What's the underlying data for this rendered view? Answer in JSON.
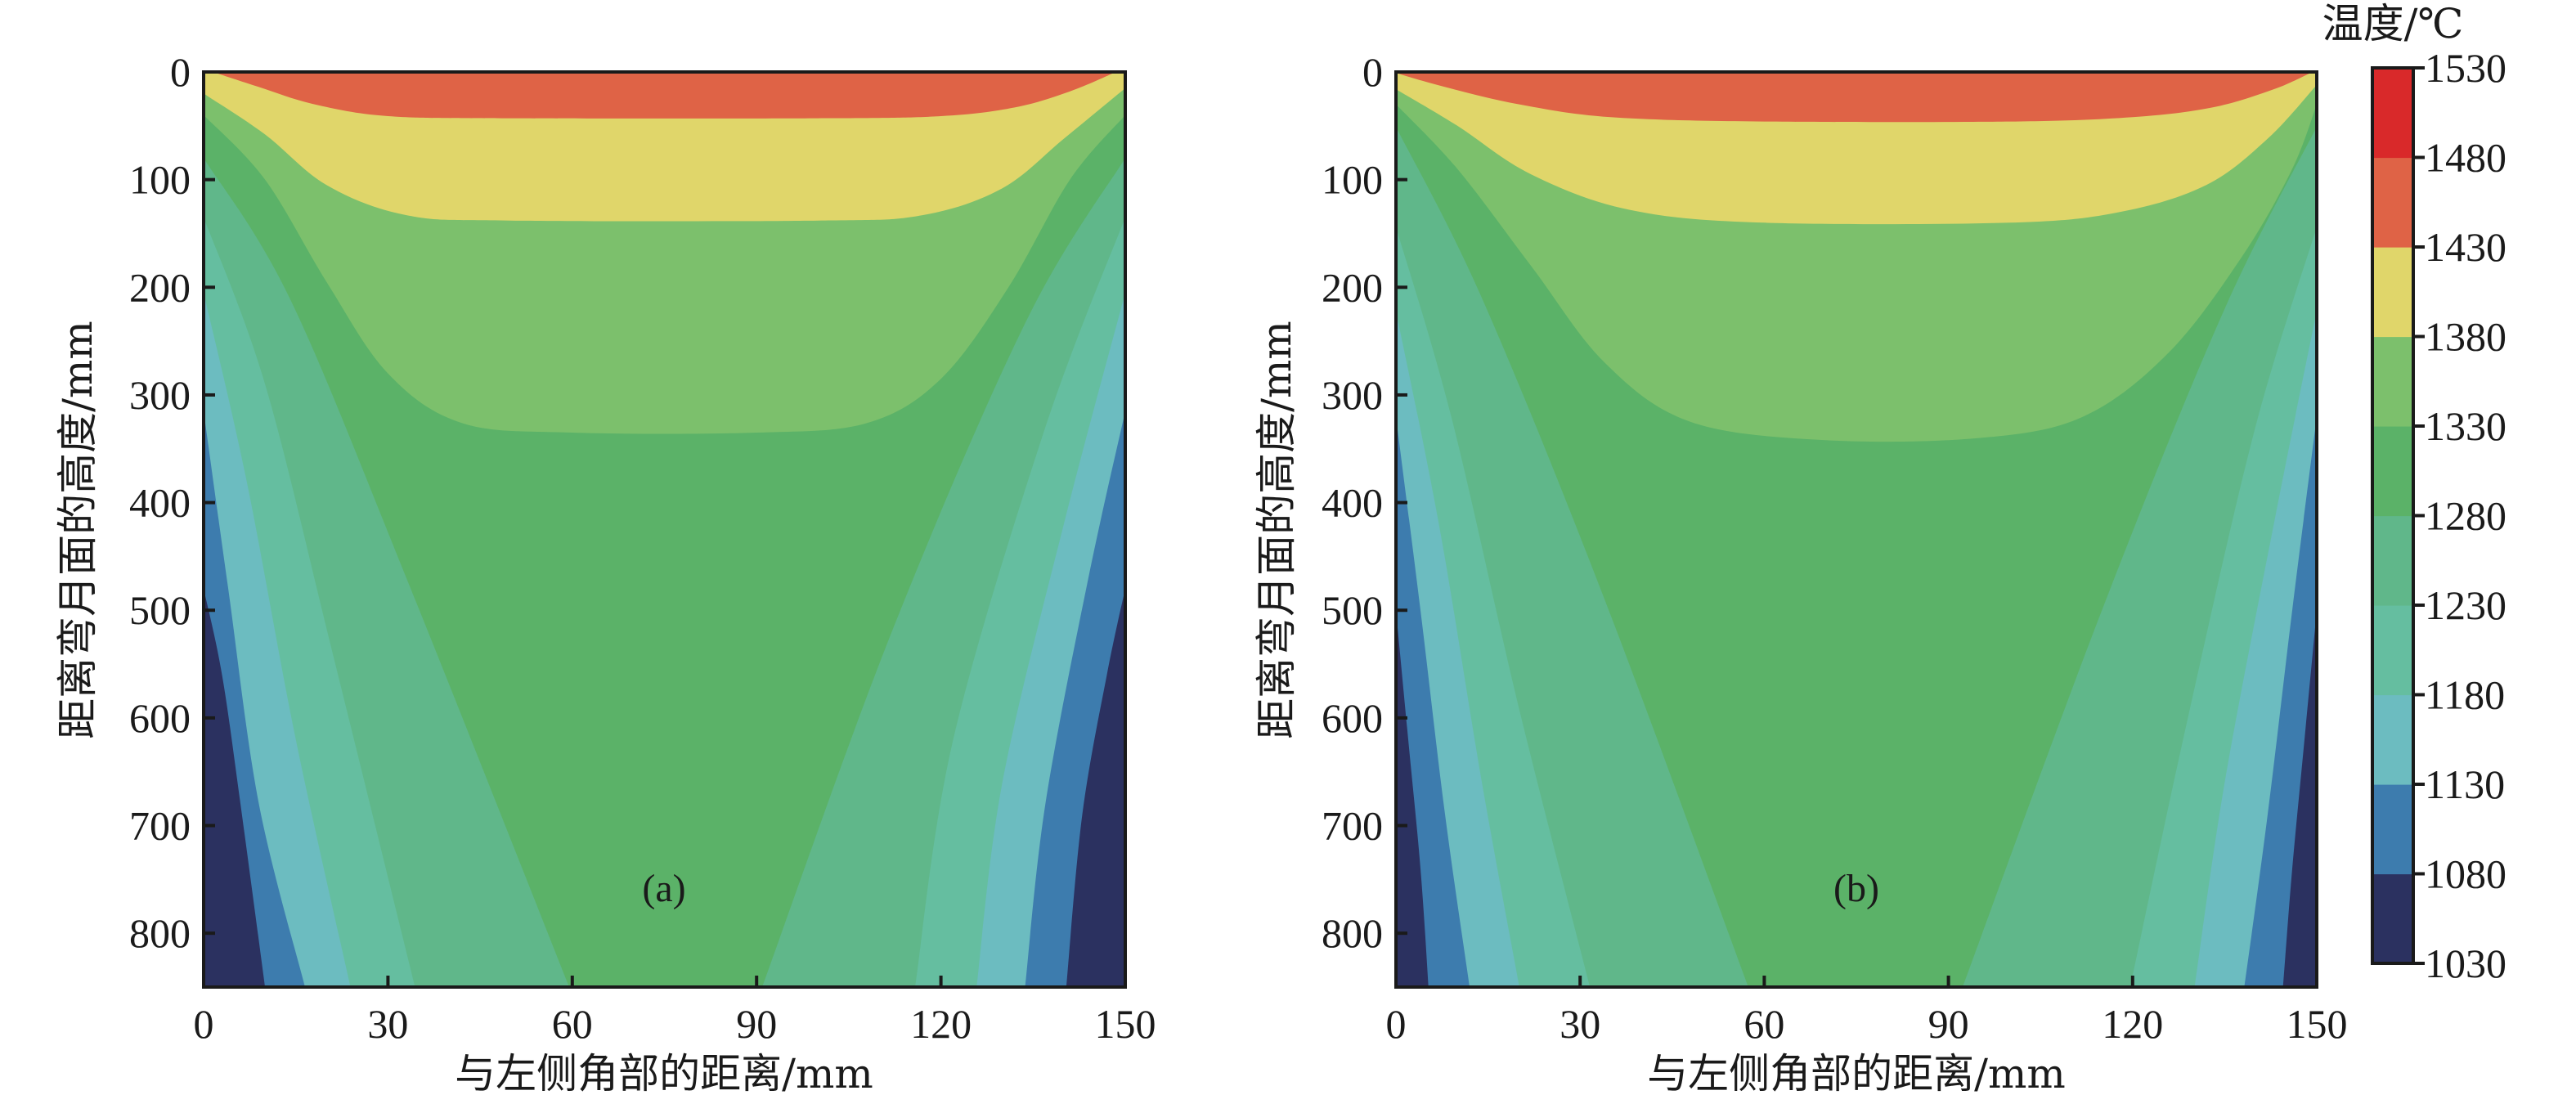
{
  "chart_data": {
    "type": "contour",
    "colorbar": {
      "title": "温度/℃",
      "levels": [
        1030,
        1080,
        1130,
        1180,
        1230,
        1280,
        1330,
        1380,
        1430,
        1480,
        1530
      ],
      "tick_labels": [
        "1530",
        "1480",
        "1430",
        "1380",
        "1330",
        "1280",
        "1230",
        "1180",
        "1130",
        "1080",
        "1030"
      ],
      "colors": [
        "#2b3160",
        "#3d7cae",
        "#6cbcc0",
        "#65bea0",
        "#60b78a",
        "#5bb268",
        "#7cc06c",
        "#e0d66a",
        "#df6346",
        "#d9292a"
      ]
    },
    "panels": [
      {
        "label": "(a)",
        "xlabel": "与左侧角部的距离/mm",
        "ylabel": "距离弯月面的高度/mm",
        "xlim": [
          0,
          150
        ],
        "ylim": [
          0,
          850
        ],
        "y_inverted": true,
        "xticks": [
          "0",
          "30",
          "60",
          "90",
          "120",
          "150"
        ],
        "yticks": [
          "0",
          "100",
          "200",
          "300",
          "400",
          "500",
          "600",
          "700",
          "800"
        ],
        "isotherms": [
          {
            "level": 1080,
            "left": [
              [
                0,
                480
              ],
              [
                3,
                560
              ],
              [
                6,
                680
              ],
              [
                10,
                850
              ]
            ],
            "right": [
              [
                150,
                480
              ],
              [
                147,
                560
              ],
              [
                143,
                690
              ],
              [
                140.4,
                850
              ]
            ]
          },
          {
            "level": 1130,
            "left": [
              [
                0,
                315
              ],
              [
                4,
                480
              ],
              [
                9,
                680
              ],
              [
                16.5,
                850
              ]
            ],
            "right": [
              [
                150,
                315
              ],
              [
                144,
                470
              ],
              [
                137,
                680
              ],
              [
                133.7,
                850
              ]
            ]
          },
          {
            "level": 1180,
            "left": [
              [
                0,
                205
              ],
              [
                7,
                380
              ],
              [
                15,
                620
              ],
              [
                23.9,
                850
              ]
            ],
            "right": [
              [
                150,
                205
              ],
              [
                140,
                420
              ],
              [
                130,
                660
              ],
              [
                125.8,
                850
              ]
            ]
          },
          {
            "level": 1230,
            "left": [
              [
                0,
                135
              ],
              [
                10,
                290
              ],
              [
                21,
                540
              ],
              [
                34.4,
                850
              ]
            ],
            "right": [
              [
                150,
                135
              ],
              [
                137,
                330
              ],
              [
                122,
                620
              ],
              [
                115.8,
                850
              ]
            ]
          },
          {
            "level": 1280,
            "left": [
              [
                0,
                80
              ],
              [
                14,
                210
              ],
              [
                33,
                470
              ],
              [
                59.5,
                850
              ]
            ],
            "right": [
              [
                150,
                80
              ],
              [
                134,
                230
              ],
              [
                112,
                520
              ],
              [
                90.9,
                850
              ]
            ]
          },
          {
            "level": 1330,
            "bowl": [
              [
                0,
                40
              ],
              [
                10,
                100
              ],
              [
                20,
                195
              ],
              [
                30,
                280
              ],
              [
                42,
                326
              ],
              [
                60,
                335
              ],
              [
                90,
                335
              ],
              [
                108,
                326
              ],
              [
                120,
                285
              ],
              [
                131,
                200
              ],
              [
                141,
                100
              ],
              [
                150,
                40
              ]
            ]
          },
          {
            "level": 1380,
            "bowl": [
              [
                0,
                20
              ],
              [
                10,
                58
              ],
              [
                20,
                105
              ],
              [
                33,
                133
              ],
              [
                50,
                138
              ],
              [
                100,
                138
              ],
              [
                117,
                133
              ],
              [
                130,
                108
              ],
              [
                140,
                62
              ],
              [
                150,
                15
              ]
            ]
          },
          {
            "level": 1430,
            "bowl": [
              [
                1.5,
                0
              ],
              [
                9,
                14
              ],
              [
                18,
                30
              ],
              [
                30,
                41
              ],
              [
                50,
                43
              ],
              [
                100,
                43
              ],
              [
                120,
                41
              ],
              [
                132,
                33
              ],
              [
                141,
                18
              ],
              [
                148.5,
                0
              ]
            ]
          }
        ]
      },
      {
        "label": "(b)",
        "xlabel": "与左侧角部的距离/mm",
        "ylabel": "距离弯月面的高度/mm",
        "xlim": [
          0,
          150
        ],
        "ylim": [
          0,
          850
        ],
        "y_inverted": true,
        "xticks": [
          "0",
          "30",
          "60",
          "90",
          "120",
          "150"
        ],
        "yticks": [
          "0",
          "100",
          "200",
          "300",
          "400",
          "500",
          "600",
          "700",
          "800"
        ],
        "isotherms": [
          {
            "level": 1080,
            "left": [
              [
                0,
                500
              ],
              [
                2,
                620
              ],
              [
                4,
                740
              ],
              [
                5.3,
                850
              ]
            ],
            "right": [
              [
                150,
                500
              ],
              [
                148,
                620
              ],
              [
                146,
                740
              ],
              [
                144.5,
                850
              ]
            ]
          },
          {
            "level": 1130,
            "left": [
              [
                0,
                320
              ],
              [
                4,
                500
              ],
              [
                8,
                690
              ],
              [
                12,
                850
              ]
            ],
            "right": [
              [
                150,
                320
              ],
              [
                146,
                500
              ],
              [
                142,
                690
              ],
              [
                138.2,
                850
              ]
            ]
          },
          {
            "level": 1180,
            "left": [
              [
                0,
                222
              ],
              [
                7,
                420
              ],
              [
                14,
                660
              ],
              [
                20.1,
                850
              ]
            ],
            "right": [
              [
                150,
                222
              ],
              [
                143,
                420
              ],
              [
                135,
                660
              ],
              [
                130.1,
                850
              ]
            ]
          },
          {
            "level": 1230,
            "left": [
              [
                0,
                144
              ],
              [
                9,
                320
              ],
              [
                20,
                590
              ],
              [
                31.6,
                850
              ]
            ],
            "right": [
              [
                150,
                144
              ],
              [
                140,
                330
              ],
              [
                129,
                600
              ],
              [
                119.6,
                850
              ]
            ]
          },
          {
            "level": 1280,
            "left": [
              [
                0,
                51
              ],
              [
                14,
                210
              ],
              [
                34,
                490
              ],
              [
                57.4,
                850
              ]
            ],
            "right": [
              [
                150,
                51
              ],
              [
                135,
                220
              ],
              [
                115,
                500
              ],
              [
                92.3,
                850
              ]
            ]
          },
          {
            "level": 1330,
            "bowl": [
              [
                0,
                30
              ],
              [
                10,
                90
              ],
              [
                22,
                180
              ],
              [
                34,
                270
              ],
              [
                48,
                325
              ],
              [
                70,
                342
              ],
              [
                95,
                340
              ],
              [
                112,
                320
              ],
              [
                126,
                260
              ],
              [
                138,
                170
              ],
              [
                146,
                90
              ],
              [
                150,
                30
              ]
            ]
          },
          {
            "level": 1380,
            "bowl": [
              [
                0,
                16
              ],
              [
                10,
                50
              ],
              [
                22,
                95
              ],
              [
                38,
                128
              ],
              [
                60,
                140
              ],
              [
                100,
                140
              ],
              [
                118,
                130
              ],
              [
                132,
                105
              ],
              [
                142,
                62
              ],
              [
                150,
                12
              ]
            ]
          },
          {
            "level": 1430,
            "bowl": [
              [
                0,
                1
              ],
              [
                8,
                14
              ],
              [
                20,
                30
              ],
              [
                35,
                42
              ],
              [
                60,
                46
              ],
              [
                100,
                46
              ],
              [
                120,
                42
              ],
              [
                133,
                33
              ],
              [
                143,
                16
              ],
              [
                149,
                1
              ]
            ]
          }
        ]
      }
    ]
  }
}
